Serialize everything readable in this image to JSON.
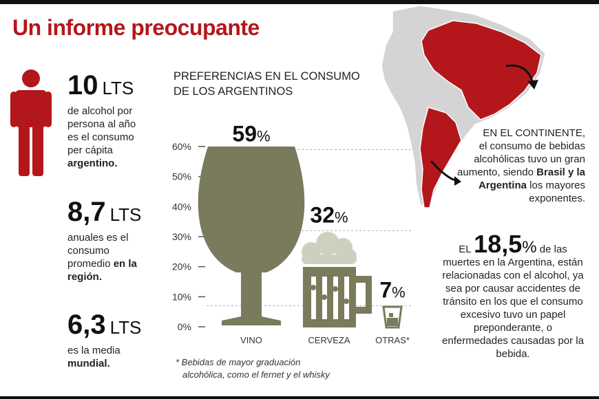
{
  "header": {
    "title": "Un informe preocupante"
  },
  "stats": [
    {
      "value": "10",
      "unit": "LTS",
      "text": "de alcohol por persona al año es el consumo per cápita",
      "bold": "argentino."
    },
    {
      "value": "8,7",
      "unit": "LTS",
      "text": "anuales es el consumo promedio",
      "bold": "en la región."
    },
    {
      "value": "6,3",
      "unit": "LTS",
      "text": "es la media",
      "bold": "mundial."
    }
  ],
  "chart_title": [
    "PREFERENCIAS EN EL CONSUMO",
    "DE LOS ARGENTINOS"
  ],
  "chart_data": {
    "type": "bar",
    "title": "PREFERENCIAS EN EL CONSUMO DE LOS ARGENTINOS",
    "categories": [
      "VINO",
      "CERVEZA",
      "OTRAS*"
    ],
    "values": [
      59,
      32,
      7
    ],
    "value_labels": [
      "59",
      "32",
      "7"
    ],
    "unit": "%",
    "ylim": [
      0,
      60
    ],
    "yticks": [
      "0%",
      "10%",
      "20%",
      "30%",
      "40%",
      "50%",
      "60%"
    ],
    "grid": false,
    "mark_style": "pictogram: wine glass, beer mug, liquor glass"
  },
  "footnote": [
    "* Bebidas de mayor graduación",
    "alcohólica, como el fernet y el whisky"
  ],
  "continent": {
    "intro": "EN EL CONTINENTE,",
    "text1": "el consumo de bebidas alcohólicas tuvo un gran aumento, siendo",
    "bold": "Brasil y la Argentina",
    "text2": "los mayores exponentes."
  },
  "deaths": {
    "prefix": "EL",
    "value": "18,5",
    "sign": "%",
    "text": "de las muertes en la Argentina, están relacionadas con el alcohol, ya sea por causar accidentes de tránsito en los que el consumo excesivo tuvo un papel preponderante, o enfermedades causadas por la bebida."
  },
  "colors": {
    "accent": "#b3171b",
    "chart_fill": "#7a7a5c",
    "map_base": "#d4d4d4",
    "text": "#222222"
  }
}
